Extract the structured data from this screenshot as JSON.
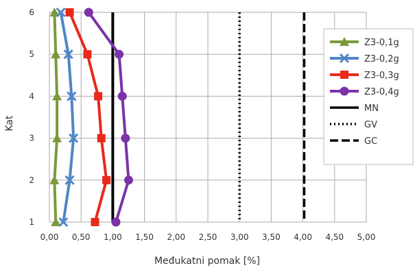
{
  "chart_data": {
    "type": "line",
    "xlabel": "Međukatni pomak [%]",
    "ylabel": "Kat",
    "xlim": [
      0,
      5
    ],
    "ylim": [
      1,
      6
    ],
    "grid": true,
    "legend_position": "right",
    "x_ticks": [
      "0,00",
      "0,50",
      "1,00",
      "1,50",
      "2,00",
      "2,50",
      "3,00",
      "3,50",
      "4,00",
      "4,50",
      "5,00"
    ],
    "y_ticks": [
      "1",
      "2",
      "3",
      "4",
      "5",
      "6"
    ],
    "floors": [
      1,
      2,
      3,
      4,
      5,
      6
    ],
    "series": [
      {
        "name": "Z3-0,1g",
        "color": "#7a9a3a",
        "marker": "triangle",
        "values": [
          0.1,
          0.08,
          0.12,
          0.12,
          0.1,
          0.08
        ]
      },
      {
        "name": "Z3-0,2g",
        "color": "#4f86c6",
        "marker": "x",
        "values": [
          0.22,
          0.32,
          0.38,
          0.35,
          0.3,
          0.18
        ]
      },
      {
        "name": "Z3-0,3g",
        "color": "#e8291c",
        "marker": "square",
        "values": [
          0.72,
          0.9,
          0.82,
          0.77,
          0.6,
          0.32
        ]
      },
      {
        "name": "Z3-0,4g",
        "color": "#7a33a8",
        "marker": "circle",
        "values": [
          1.05,
          1.25,
          1.2,
          1.15,
          1.1,
          0.62
        ]
      }
    ],
    "limits": [
      {
        "name": "MN",
        "value": 1.0,
        "style": "solid"
      },
      {
        "name": "GV",
        "value": 3.0,
        "style": "dotted"
      },
      {
        "name": "GC",
        "value": 4.02,
        "style": "dashed"
      }
    ]
  }
}
